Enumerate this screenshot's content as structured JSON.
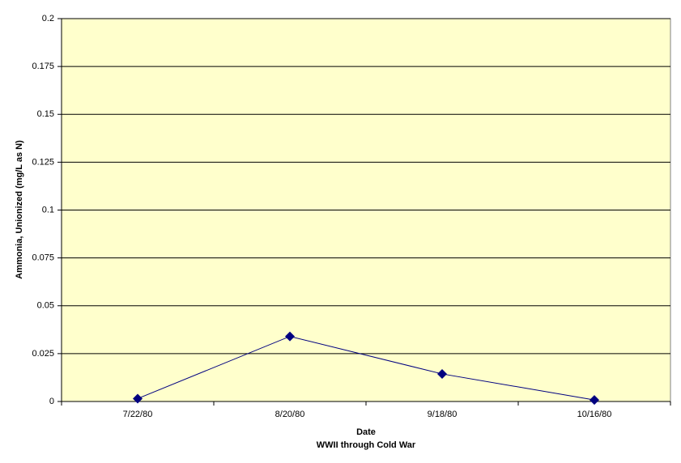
{
  "chart_data": {
    "type": "line",
    "ylabel": "Ammonia, Unionized (mg/L as N)",
    "xlabel": "Date",
    "subtitle": "WWII through Cold War",
    "categories": [
      "7/22/80",
      "8/20/80",
      "9/18/80",
      "10/16/80"
    ],
    "values": [
      0.0015,
      0.034,
      0.0144,
      0.0008
    ],
    "color": "#000080",
    "ylim": [
      0,
      0.2
    ],
    "yticks": [
      0,
      0.025,
      0.05,
      0.075,
      0.1,
      0.125,
      0.15,
      0.175,
      0.2
    ],
    "grid": true,
    "background": "#ffffcc"
  }
}
